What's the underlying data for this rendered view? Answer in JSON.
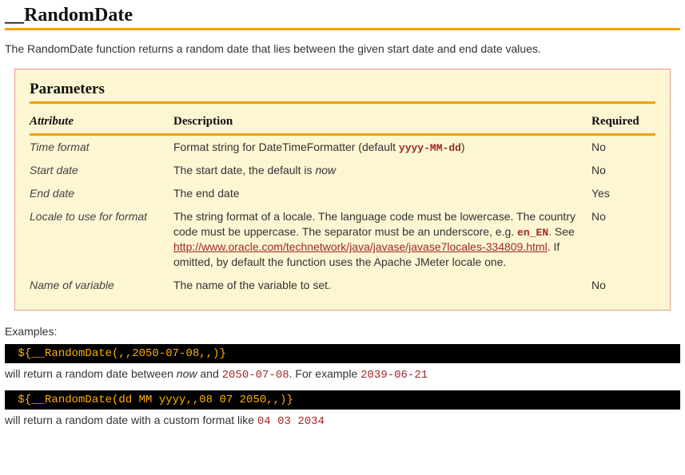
{
  "title": "__RandomDate",
  "intro": "The RandomDate function returns a random date that lies between the given start date and end date values.",
  "colors": {
    "accent": "#f7a100",
    "box_bg": "#fdf6d3",
    "box_border": "#e69c91",
    "mono_text": "#a02828",
    "code_bg": "#000000",
    "code_text": "#ffb000"
  },
  "params": {
    "heading": "Parameters",
    "columns": [
      "Attribute",
      "Description",
      "Required"
    ],
    "rows": [
      {
        "attr": "Time format",
        "desc_pre": "Format string for DateTimeFormatter (default ",
        "desc_code": "yyyy-MM-dd",
        "desc_post": ")",
        "req": "No"
      },
      {
        "attr": "Start date",
        "desc_pre": "The start date, the default is ",
        "desc_em": "now",
        "req": "No"
      },
      {
        "attr": "End date",
        "desc_pre": "The end date",
        "req": "Yes"
      },
      {
        "attr": "Locale to use for format",
        "desc_pre": "The string format of a locale. The language code must be lowercase. The country code must be uppercase. The separator must be an underscore, e.g. ",
        "desc_code": "en_EN",
        "desc_mid": ". See ",
        "desc_link": "http://www.oracle.com/technetwork/java/javase/javase7locales-334809.html",
        "desc_post": ". If omitted, by default the function uses the Apache JMeter locale one.",
        "req": "No"
      },
      {
        "attr": "Name of variable",
        "desc_pre": "The name of the variable to set.",
        "req": "No"
      }
    ]
  },
  "examples": {
    "label": "Examples:",
    "items": [
      {
        "code": "${__RandomDate(,,2050-07-08,,)}",
        "explain_pre": "will return a random date between ",
        "explain_em": "now",
        "explain_mid": " and ",
        "explain_code1": "2050-07-08",
        "explain_mid2": ". For example ",
        "explain_code2": "2039-06-21"
      },
      {
        "code": "${__RandomDate(dd MM yyyy,,08 07 2050,,)}",
        "explain_pre": "will return a random date with a custom format like ",
        "explain_code1": "04 03 2034"
      }
    ]
  }
}
